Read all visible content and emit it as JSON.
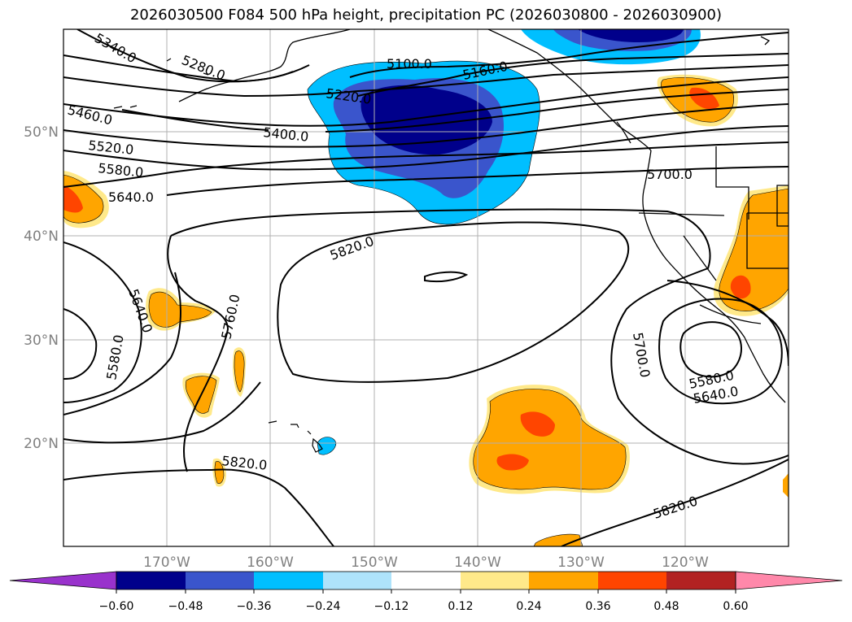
{
  "title": "2026030500 F084 500 hPa height, precipitation PC (2026030800 - 2026030900)",
  "map": {
    "lat_labels": [
      "50°N",
      "40°N",
      "30°N",
      "20°N"
    ],
    "lon_labels": [
      "170°W",
      "160°W",
      "150°W",
      "140°W",
      "130°W",
      "120°W"
    ],
    "contour_labels": [
      "5340.0",
      "5280.0",
      "5100.0",
      "5160.0",
      "5220.0",
      "5460.0",
      "5400.0",
      "5520.0",
      "5580.0",
      "5640.0",
      "5700.0",
      "5820.0",
      "5640.0",
      "5580.0",
      "5760.0",
      "5700.0",
      "5580.0",
      "5640.0",
      "5820.0",
      "5820.0"
    ]
  },
  "colorbar": {
    "ticks": [
      "−0.60",
      "−0.48",
      "−0.36",
      "−0.24",
      "−0.12",
      "0.12",
      "0.24",
      "0.36",
      "0.48",
      "0.60"
    ],
    "colors": [
      "#9932cc",
      "#00008b",
      "#3a55cc",
      "#00bfff",
      "#aee3fb",
      "#ffffff",
      "#ffe98a",
      "#ffa500",
      "#ff4500",
      "#b22222",
      "#ff88aa"
    ]
  },
  "palette": {
    "grid": "#b0b0b0",
    "contour": "#000000",
    "coast": "#000000"
  }
}
